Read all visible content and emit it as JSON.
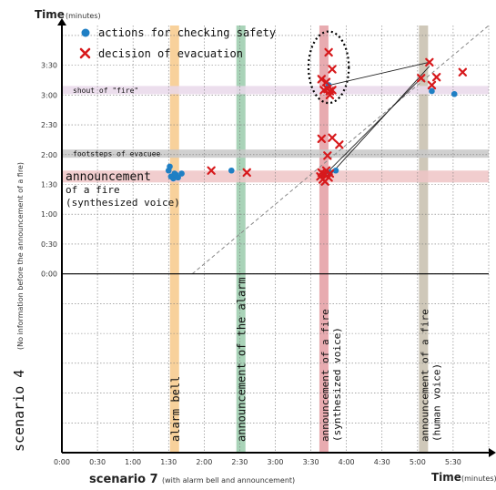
{
  "chart_data": {
    "type": "scatter",
    "x_axis": {
      "title": "scenario 7",
      "title_note": "(with alarm bell and announcement)",
      "corner_label": "Time",
      "corner_unit": "(minutes)",
      "ticks": [
        "0:00",
        "0:30",
        "1:00",
        "1:30",
        "2:00",
        "2:30",
        "3:00",
        "3:30",
        "4:00",
        "4:30",
        "5:00",
        "5:30"
      ],
      "xlim": [
        0,
        360
      ]
    },
    "y_axis": {
      "title": "scenario 4",
      "title_note": "(No information before the announcement of a fire)",
      "corner_label": "Time",
      "corner_unit": "(minutes)",
      "ticks": [
        "0:00",
        "0:30",
        "1:00",
        "1:30",
        "2:00",
        "2:30",
        "3:00",
        "3:30"
      ],
      "ylim": [
        -180,
        250
      ]
    },
    "legend": [
      {
        "label": "actions for checking safety",
        "marker": "circle",
        "color": "#1f7fc4"
      },
      {
        "label": "decision of evacuation",
        "marker": "cross",
        "color": "#d7191c"
      }
    ],
    "vertical_bands": [
      {
        "x": 95,
        "color": "#f5c27a",
        "label": "alarm bell"
      },
      {
        "x": 151,
        "color": "#8cc4a0",
        "label": "announcement of the alarm"
      },
      {
        "x": 221,
        "color": "#e08f95",
        "label": "announcement of a fire",
        "label2": "(synthesized voice)"
      },
      {
        "x": 305,
        "color": "#bfb6a1",
        "label": "announcement of a fire",
        "label2": "(human voice)"
      }
    ],
    "horizontal_bands": [
      {
        "y": 185,
        "color": "#e9d8ea",
        "label": "shout of \"fire\""
      },
      {
        "y": 121,
        "color": "#c8c8c8",
        "label": "footsteps of evacuee"
      },
      {
        "y": 98,
        "color": "#eec4c6",
        "label": "announcement",
        "label2": "of a fire",
        "label3": "(synthesized voice)"
      }
    ],
    "series": [
      {
        "name": "actions for checking safety",
        "marker": "circle",
        "points": [
          [
            90,
            104
          ],
          [
            91,
            108
          ],
          [
            92,
            98
          ],
          [
            94,
            96
          ],
          [
            95,
            101
          ],
          [
            96,
            100
          ],
          [
            98,
            97
          ],
          [
            101,
            101
          ],
          [
            143,
            104
          ],
          [
            221,
            100
          ],
          [
            226,
            102
          ],
          [
            231,
            104
          ],
          [
            225,
            190
          ],
          [
            312,
            184
          ],
          [
            331,
            181
          ]
        ]
      },
      {
        "name": "decision of evacuation",
        "marker": "cross",
        "points": [
          [
            126,
            104
          ],
          [
            156,
            102
          ],
          [
            219,
            196
          ],
          [
            223,
            193
          ],
          [
            221,
            185
          ],
          [
            224,
            186
          ],
          [
            226,
            184
          ],
          [
            228,
            185
          ],
          [
            225,
            223
          ],
          [
            228,
            206
          ],
          [
            226,
            180
          ],
          [
            219,
            136
          ],
          [
            228,
            137
          ],
          [
            234,
            130
          ],
          [
            224,
            119
          ],
          [
            218,
            98
          ],
          [
            219,
            102
          ],
          [
            220,
            95
          ],
          [
            222,
            100
          ],
          [
            223,
            104
          ],
          [
            225,
            97
          ],
          [
            226,
            101
          ],
          [
            222,
            93
          ],
          [
            303,
            197
          ],
          [
            310,
            213
          ],
          [
            312,
            190
          ],
          [
            316,
            198
          ],
          [
            338,
            203
          ]
        ]
      }
    ],
    "lines": [
      [
        [
          226,
          190
        ],
        [
          310,
          213
        ]
      ],
      [
        [
          222,
          100
        ],
        [
          303,
          197
        ]
      ],
      [
        [
          225,
          98
        ],
        [
          310,
          209
        ]
      ]
    ],
    "diagonal": [
      [
        110,
        0
      ],
      [
        360,
        250
      ]
    ],
    "annotation": {
      "type": "ellipse",
      "cx": 225,
      "cy": 208,
      "rx": 17,
      "ry": 36
    }
  }
}
